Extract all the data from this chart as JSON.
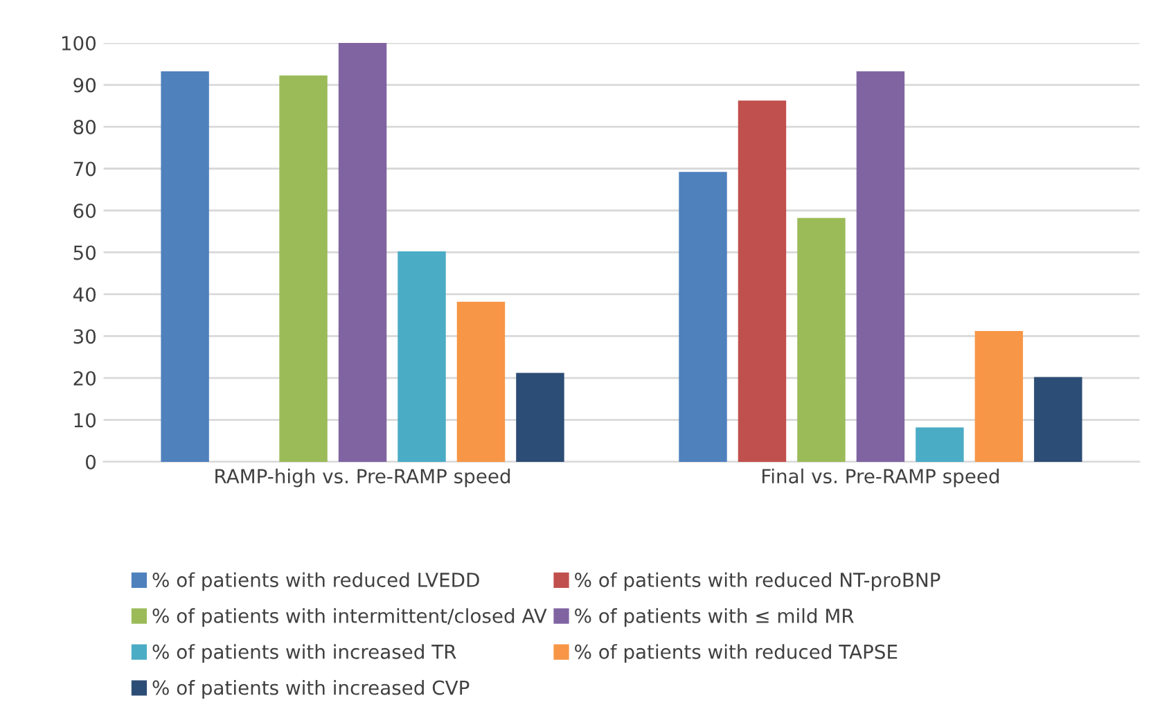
{
  "chart_data": {
    "type": "bar",
    "categories": [
      "RAMP-high vs. Pre-RAMP speed",
      "Final vs. Pre-RAMP speed"
    ],
    "series": [
      {
        "name": "% of patients with reduced LVEDD",
        "color": "#4f81bd",
        "values": [
          93,
          69
        ]
      },
      {
        "name": "% of patients with reduced NT-proBNP",
        "color": "#c0504d",
        "values": [
          null,
          86
        ]
      },
      {
        "name": "% of patients with intermittent/closed AV",
        "color": "#9bbb59",
        "values": [
          92,
          58
        ]
      },
      {
        "name": "% of patients with ≤ mild MR",
        "color": "#8064a2",
        "values": [
          100,
          93
        ]
      },
      {
        "name": "% of patients with increased TR",
        "color": "#4bacc6",
        "values": [
          50,
          8
        ]
      },
      {
        "name": "% of patients with reduced TAPSE",
        "color": "#f79646",
        "values": [
          38,
          31
        ]
      },
      {
        "name": "% of patients with increased CVP",
        "color": "#2c4d75",
        "values": [
          21,
          20
        ]
      }
    ],
    "ylim": [
      0,
      100
    ],
    "yticks": [
      0,
      10,
      20,
      30,
      40,
      50,
      60,
      70,
      80,
      90,
      100
    ],
    "grid": "y",
    "legend": "bottom"
  }
}
